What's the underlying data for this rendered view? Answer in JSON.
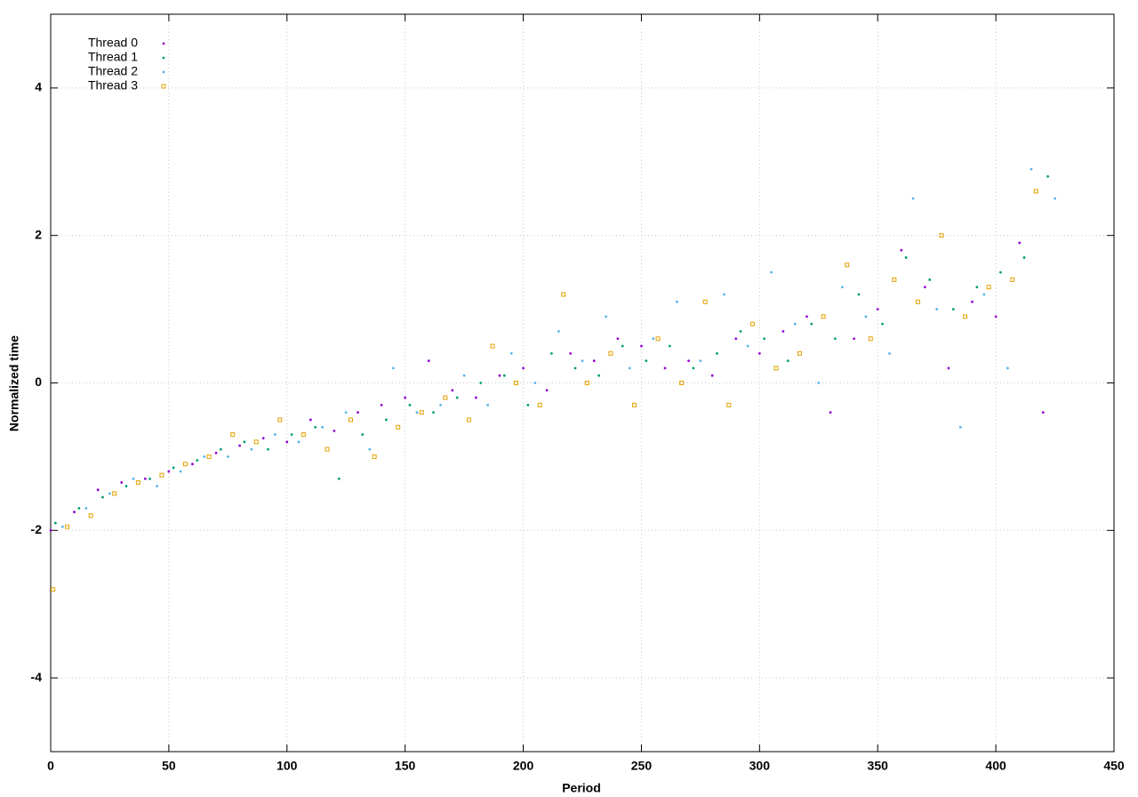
{
  "chart_data": {
    "type": "scatter",
    "xlabel": "Period",
    "ylabel": "Normalized time",
    "xlim": [
      0,
      450
    ],
    "ylim": [
      -5,
      5
    ],
    "xticks": [
      0,
      50,
      100,
      150,
      200,
      250,
      300,
      350,
      400,
      450
    ],
    "yticks": [
      -4,
      -2,
      0,
      2,
      4
    ],
    "grid": true,
    "legend": "top-left",
    "series": [
      {
        "name": "Thread 0",
        "color": "#9400d3",
        "marker": "dot",
        "x": [
          0,
          10,
          20,
          30,
          40,
          50,
          60,
          70,
          80,
          90,
          100,
          110,
          120,
          130,
          140,
          150,
          160,
          170,
          180,
          190,
          200,
          210,
          220,
          230,
          240,
          250,
          260,
          270,
          280,
          290,
          300,
          310,
          320,
          330,
          340,
          350,
          360,
          370,
          380,
          390,
          400,
          410,
          420
        ],
        "values": [
          -2.0,
          -1.75,
          -1.45,
          -1.35,
          -1.3,
          -1.2,
          -1.1,
          -0.95,
          -0.85,
          -0.75,
          -0.8,
          -0.5,
          -0.65,
          -0.4,
          -0.3,
          -0.2,
          0.3,
          -0.1,
          -0.2,
          0.1,
          0.2,
          -0.1,
          0.4,
          0.3,
          0.6,
          0.5,
          0.2,
          0.3,
          0.1,
          0.6,
          0.4,
          0.7,
          0.9,
          -0.4,
          0.6,
          1.0,
          1.8,
          1.3,
          0.2,
          1.1,
          0.9,
          1.9,
          -0.4
        ]
      },
      {
        "name": "Thread 1",
        "color": "#009e73",
        "marker": "dot",
        "x": [
          2,
          12,
          22,
          32,
          42,
          52,
          62,
          72,
          82,
          92,
          102,
          112,
          122,
          132,
          142,
          152,
          162,
          172,
          182,
          192,
          202,
          212,
          222,
          232,
          242,
          252,
          262,
          272,
          282,
          292,
          302,
          312,
          322,
          332,
          342,
          352,
          362,
          372,
          382,
          392,
          402,
          412,
          422
        ],
        "values": [
          -1.9,
          -1.7,
          -1.55,
          -1.4,
          -1.3,
          -1.15,
          -1.05,
          -0.9,
          -0.8,
          -0.9,
          -0.7,
          -0.6,
          -1.3,
          -0.7,
          -0.5,
          -0.3,
          -0.4,
          -0.2,
          0.0,
          0.1,
          -0.3,
          0.4,
          0.2,
          0.1,
          0.5,
          0.3,
          0.5,
          0.2,
          0.4,
          0.7,
          0.6,
          0.3,
          0.8,
          0.6,
          1.2,
          0.8,
          1.7,
          1.4,
          1.0,
          1.3,
          1.5,
          1.7,
          2.8
        ]
      },
      {
        "name": "Thread 2",
        "color": "#56b4e9",
        "marker": "dot",
        "x": [
          5,
          15,
          25,
          35,
          45,
          55,
          65,
          75,
          85,
          95,
          105,
          115,
          125,
          135,
          145,
          155,
          165,
          175,
          185,
          195,
          205,
          215,
          225,
          235,
          245,
          255,
          265,
          275,
          285,
          295,
          305,
          315,
          325,
          335,
          345,
          355,
          365,
          375,
          385,
          395,
          405,
          415,
          425
        ],
        "values": [
          -1.95,
          -1.7,
          -1.5,
          -1.3,
          -1.4,
          -1.2,
          -1.0,
          -1.0,
          -0.9,
          -0.7,
          -0.8,
          -0.6,
          -0.4,
          -0.9,
          0.2,
          -0.4,
          -0.3,
          0.1,
          -0.3,
          0.4,
          0.0,
          0.7,
          0.3,
          0.9,
          0.2,
          0.6,
          1.1,
          0.3,
          1.2,
          0.5,
          1.5,
          0.8,
          0.0,
          1.3,
          0.9,
          0.4,
          2.5,
          1.0,
          -0.6,
          1.2,
          0.2,
          2.9,
          2.5
        ]
      },
      {
        "name": "Thread 3",
        "color": "#e69f00",
        "marker": "square",
        "x": [
          1,
          7,
          17,
          27,
          37,
          47,
          57,
          67,
          77,
          87,
          97,
          107,
          117,
          127,
          137,
          147,
          157,
          167,
          177,
          187,
          197,
          207,
          217,
          227,
          237,
          247,
          257,
          267,
          277,
          287,
          297,
          307,
          317,
          327,
          337,
          347,
          357,
          367,
          377,
          387,
          397,
          407,
          417
        ],
        "values": [
          -2.8,
          -1.95,
          -1.8,
          -1.5,
          -1.35,
          -1.25,
          -1.1,
          -1.0,
          -0.7,
          -0.8,
          -0.5,
          -0.7,
          -0.9,
          -0.5,
          -1.0,
          -0.6,
          -0.4,
          -0.2,
          -0.5,
          0.5,
          0.0,
          -0.3,
          1.2,
          0.0,
          0.4,
          -0.3,
          0.6,
          0.0,
          1.1,
          -0.3,
          0.8,
          0.2,
          0.4,
          0.9,
          1.6,
          0.6,
          1.4,
          1.1,
          2.0,
          0.9,
          1.3,
          1.4,
          2.6
        ]
      }
    ]
  }
}
